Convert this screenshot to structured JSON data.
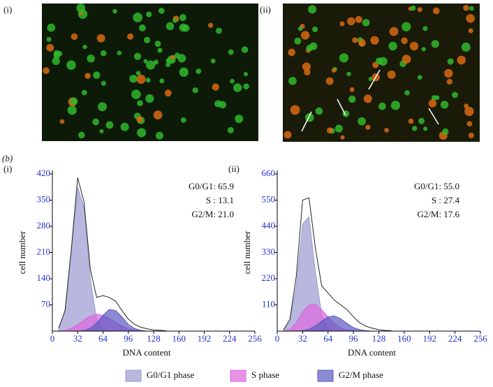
{
  "panel_a": {
    "labels": [
      "(i)",
      "(ii)"
    ]
  },
  "panel_b_label": "(b)",
  "chart_data": [
    {
      "type": "area",
      "subfigure": "(i)",
      "xlabel": "DNA content",
      "ylabel": "cell number",
      "xlim": [
        0,
        256
      ],
      "xticks": [
        0,
        32,
        64,
        96,
        128,
        160,
        192,
        224,
        256
      ],
      "ylim": [
        0,
        420
      ],
      "yticks": [
        70,
        140,
        210,
        280,
        350,
        420
      ],
      "annotations": [
        "G0/G1: 65.9",
        "S : 13.1",
        "G2/M: 21.0"
      ],
      "x": [
        8,
        16,
        24,
        32,
        40,
        48,
        56,
        64,
        72,
        80,
        88,
        96,
        104,
        112,
        120,
        128,
        136,
        144
      ],
      "series": [
        {
          "name": "G0/G1 phase",
          "color": "#9a9ad0",
          "values": [
            6,
            52,
            215,
            385,
            330,
            140,
            30,
            3,
            0,
            0,
            0,
            0,
            0,
            0,
            0,
            0,
            0,
            0
          ]
        },
        {
          "name": "S phase",
          "color": "#dd66dd",
          "values": [
            0,
            2,
            8,
            18,
            30,
            40,
            45,
            42,
            34,
            24,
            14,
            6,
            2,
            0,
            0,
            0,
            0,
            0
          ]
        },
        {
          "name": "G2/M phase",
          "color": "#5a5ac0",
          "values": [
            0,
            0,
            0,
            0,
            2,
            8,
            22,
            42,
            58,
            55,
            38,
            18,
            7,
            2,
            0,
            0,
            0,
            0
          ]
        }
      ],
      "histogram": [
        8,
        55,
        220,
        410,
        345,
        165,
        90,
        95,
        90,
        80,
        55,
        32,
        18,
        10,
        6,
        3,
        2,
        1
      ]
    },
    {
      "type": "area",
      "subfigure": "(ii)",
      "xlabel": "DNA content",
      "ylabel": "cell number",
      "xlim": [
        0,
        256
      ],
      "xticks": [
        0,
        32,
        64,
        96,
        128,
        160,
        192,
        224,
        256
      ],
      "ylim": [
        0,
        660
      ],
      "yticks": [
        110,
        220,
        330,
        440,
        550,
        660
      ],
      "annotations": [
        "G0/G1: 55.0",
        "S : 27.4",
        "G2/M: 17.6"
      ],
      "x": [
        8,
        16,
        24,
        32,
        40,
        48,
        56,
        64,
        72,
        80,
        88,
        96,
        104,
        112,
        120,
        128,
        136,
        144
      ],
      "series": [
        {
          "name": "G0/G1 phase",
          "color": "#9a9ad0",
          "values": [
            4,
            40,
            190,
            450,
            480,
            250,
            70,
            10,
            0,
            0,
            0,
            0,
            0,
            0,
            0,
            0,
            0,
            0
          ]
        },
        {
          "name": "S phase",
          "color": "#dd66dd",
          "values": [
            0,
            8,
            35,
            80,
            110,
            112,
            90,
            60,
            32,
            14,
            5,
            1,
            0,
            0,
            0,
            0,
            0,
            0
          ]
        },
        {
          "name": "G2/M phase",
          "color": "#5a5ac0",
          "values": [
            0,
            0,
            0,
            2,
            8,
            22,
            42,
            60,
            64,
            52,
            32,
            15,
            6,
            2,
            0,
            0,
            0,
            0
          ]
        }
      ],
      "histogram": [
        6,
        50,
        230,
        550,
        560,
        350,
        190,
        160,
        130,
        110,
        90,
        60,
        35,
        20,
        12,
        6,
        3,
        2
      ]
    }
  ]
}
